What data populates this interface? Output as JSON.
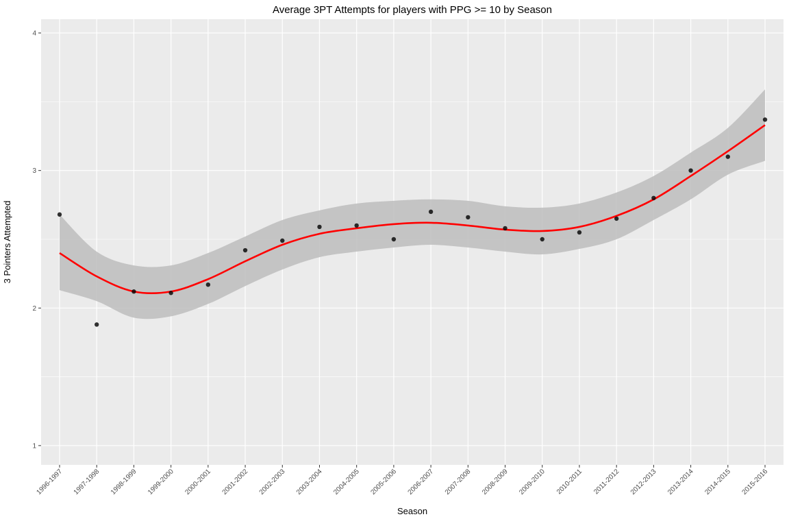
{
  "chart_data": {
    "type": "scatter",
    "title": "Average 3PT Attempts for players with PPG >= 10 by Season",
    "xlabel": "Season",
    "ylabel": "3 Pointers Attempted",
    "categories": [
      "1996-1997",
      "1997-1998",
      "1998-1999",
      "1999-2000",
      "2000-2001",
      "2001-2002",
      "2002-2003",
      "2003-2004",
      "2004-2005",
      "2005-2006",
      "2006-2007",
      "2007-2008",
      "2008-2009",
      "2009-2010",
      "2010-2011",
      "2011-2012",
      "2012-2013",
      "2013-2014",
      "2014-2015",
      "2015-2016"
    ],
    "ylim": [
      0.86,
      4.1
    ],
    "yticks": [
      1,
      2,
      3,
      4
    ],
    "ytick_labels": [
      "1",
      "2",
      "3",
      "4"
    ],
    "grid": true,
    "series": [
      {
        "type": "scatter",
        "values": [
          2.68,
          1.88,
          2.12,
          2.11,
          2.17,
          2.42,
          2.49,
          2.59,
          2.6,
          2.5,
          2.7,
          2.66,
          2.58,
          2.5,
          2.55,
          2.65,
          2.8,
          3.0,
          3.1,
          3.37
        ],
        "color": "#000000"
      },
      {
        "type": "smooth",
        "values": [
          2.4,
          2.23,
          2.12,
          2.12,
          2.21,
          2.34,
          2.46,
          2.54,
          2.58,
          2.61,
          2.62,
          2.6,
          2.57,
          2.56,
          2.59,
          2.67,
          2.79,
          2.96,
          3.14,
          3.33
        ],
        "ci_lower": [
          2.13,
          2.05,
          1.93,
          1.94,
          2.03,
          2.16,
          2.28,
          2.37,
          2.41,
          2.44,
          2.46,
          2.44,
          2.41,
          2.39,
          2.43,
          2.5,
          2.64,
          2.79,
          2.97,
          3.07
        ],
        "ci_upper": [
          2.68,
          2.41,
          2.31,
          2.31,
          2.4,
          2.52,
          2.64,
          2.71,
          2.76,
          2.78,
          2.79,
          2.78,
          2.74,
          2.73,
          2.76,
          2.84,
          2.96,
          3.13,
          3.31,
          3.59
        ],
        "color": "#ff0000",
        "ribbon_color": "#bdbdbd"
      }
    ],
    "colors": {
      "panel_bg": "#ebebeb",
      "grid": "#ffffff",
      "line": "#ff0000",
      "ribbon": "#bdbdbd",
      "point": "#000000"
    }
  }
}
